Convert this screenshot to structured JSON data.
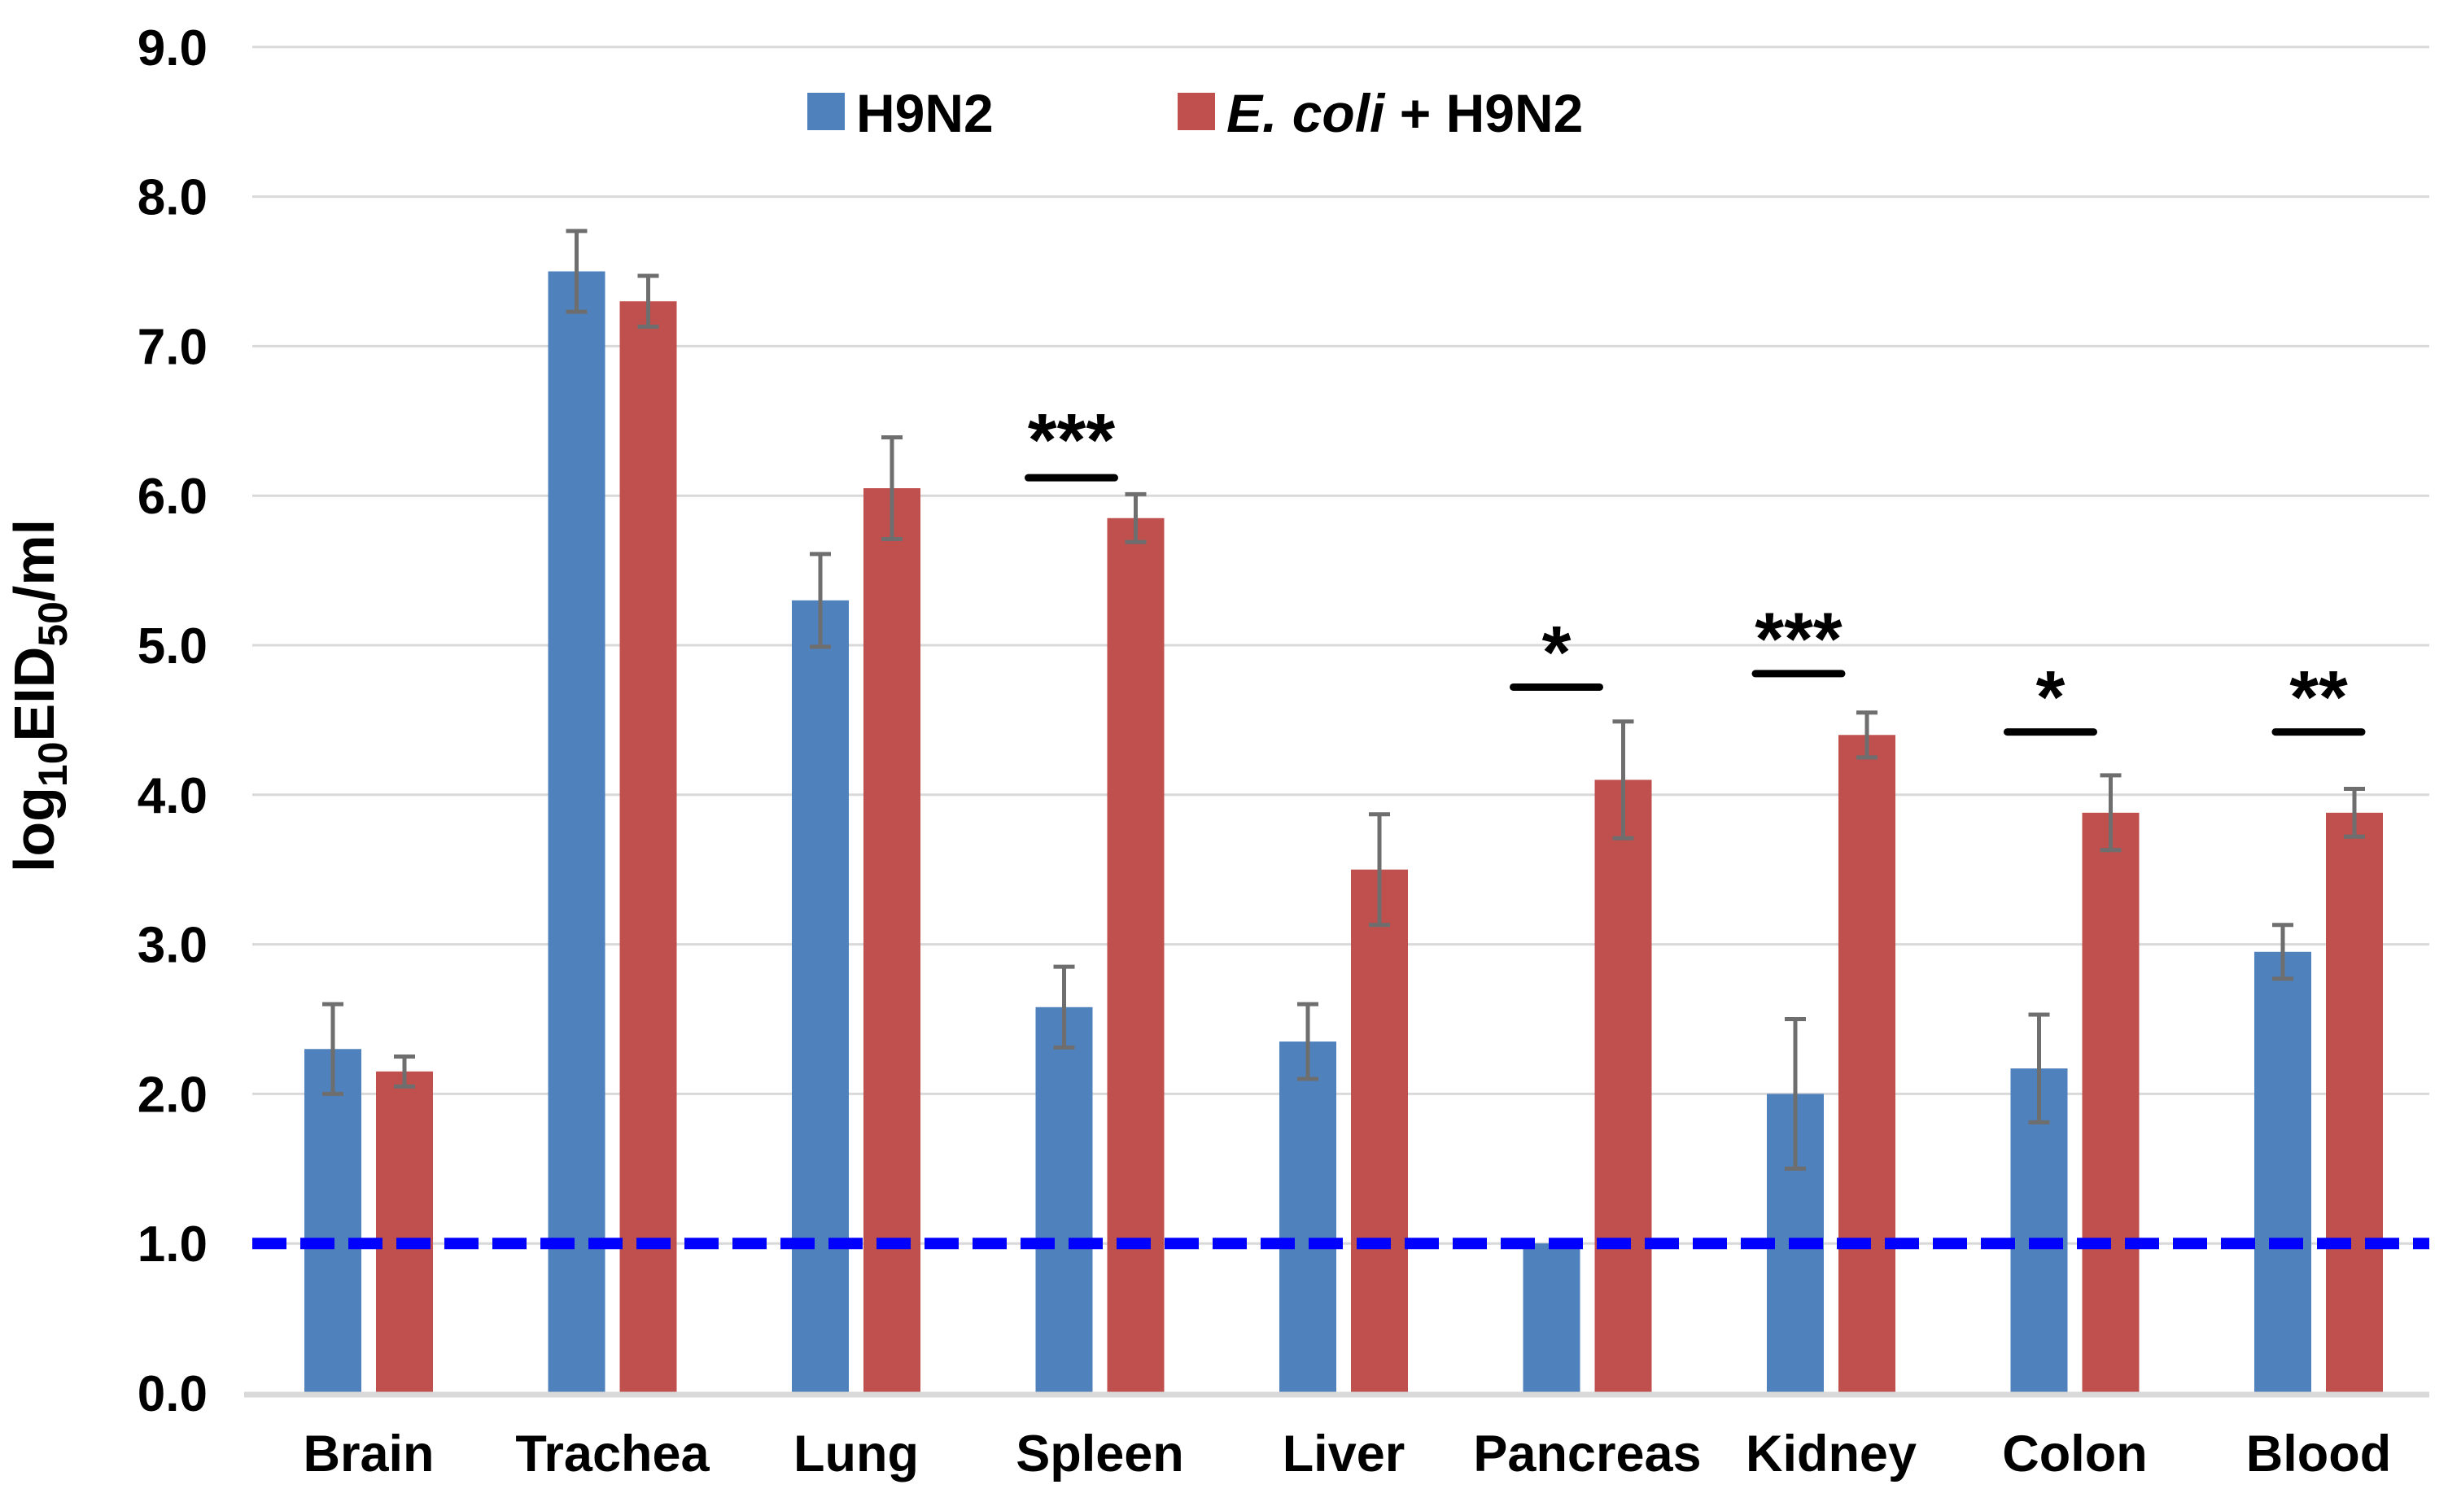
{
  "chart_data": {
    "type": "bar",
    "title": "",
    "xlabel": "",
    "ylabel": "log10EID50/ml",
    "ylabel_rich": [
      {
        "text": "log",
        "sub": false
      },
      {
        "text": "10",
        "sub": true
      },
      {
        "text": "EID",
        "sub": false
      },
      {
        "text": "50",
        "sub": true
      },
      {
        "text": "/ml",
        "sub": false
      }
    ],
    "categories": [
      "Brain",
      "Trachea",
      "Lung",
      "Spleen",
      "Liver",
      "Pancreas",
      "Kidney",
      "Colon",
      "Blood"
    ],
    "series": [
      {
        "key": "h9n2",
        "name": "H9N2",
        "name_rich": [
          {
            "text": "H9N2",
            "italic": false
          }
        ],
        "color": "#4F81BD",
        "values": [
          2.3,
          7.5,
          5.3,
          2.58,
          2.35,
          1.0,
          2.0,
          2.17,
          2.95
        ],
        "errors": [
          0.3,
          0.27,
          0.31,
          0.27,
          0.25,
          null,
          0.5,
          0.36,
          0.18
        ]
      },
      {
        "key": "ecoli-h9n2",
        "name": "E. coli + H9N2",
        "name_rich": [
          {
            "text": "E. coli",
            "italic": true
          },
          {
            "text": " + H9N2",
            "italic": false
          }
        ],
        "color": "#C0504D",
        "values": [
          2.15,
          7.3,
          6.05,
          5.85,
          3.5,
          4.1,
          4.4,
          3.88,
          3.88
        ],
        "errors": [
          0.1,
          0.17,
          0.34,
          0.16,
          0.37,
          0.39,
          0.15,
          0.25,
          0.16
        ]
      }
    ],
    "ylim": [
      0,
      9
    ],
    "ytick_step": 1.0,
    "yticks": [
      "0.0",
      "1.0",
      "2.0",
      "3.0",
      "4.0",
      "5.0",
      "6.0",
      "7.0",
      "8.0",
      "9.0"
    ],
    "grid": true,
    "legend_position": "top",
    "baseline": {
      "y": 1.0,
      "style": "dashed",
      "color": "#0000FF"
    },
    "significance": [
      {
        "category": "Spleen",
        "stars": "***",
        "line_y": 6.12,
        "stars_y": 6.45,
        "x_offset": -35,
        "color": "#FF0000"
      },
      {
        "category": "Pancreas",
        "stars": "*",
        "line_y": 4.72,
        "stars_y": 5.03,
        "x_offset": -38,
        "color": "#FF0000"
      },
      {
        "category": "Kidney",
        "stars": "***",
        "line_y": 4.81,
        "stars_y": 5.12,
        "x_offset": -40,
        "color": "#FF0000"
      },
      {
        "category": "Colon",
        "stars": "*",
        "line_y": 4.42,
        "stars_y": 4.73,
        "x_offset": -30,
        "color": "#FF0000"
      },
      {
        "category": "Blood",
        "stars": "**",
        "line_y": 4.42,
        "stars_y": 4.73,
        "x_offset": 0,
        "color": "#FF0000"
      }
    ],
    "colors": {
      "error_bar": "#6E6E6E",
      "grid_line": "#D9D9D9",
      "axis_line": "#D9D9D9",
      "tick_text": "#000000",
      "category_text": "#000000"
    }
  }
}
